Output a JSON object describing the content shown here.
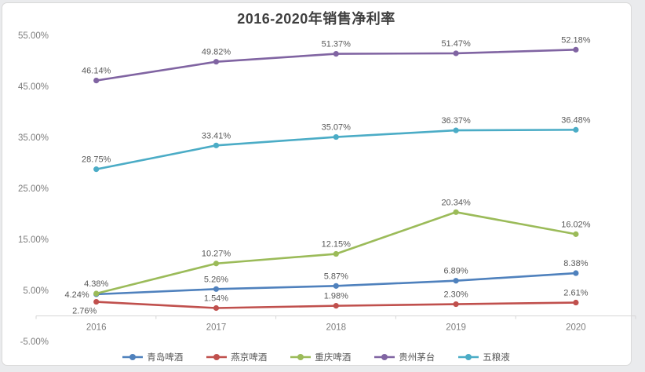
{
  "chart": {
    "title": "2016-2020年销售净利率"
  },
  "chart_data": {
    "type": "line",
    "title": "2016-2020年销售净利率",
    "categories": [
      "2016",
      "2017",
      "2018",
      "2019",
      "2020"
    ],
    "series": [
      {
        "name": "青岛啤酒",
        "color": "#4F81BD",
        "values": [
          4.24,
          5.26,
          5.87,
          6.89,
          8.38
        ],
        "labels": [
          "4.24%",
          "5.26%",
          "5.87%",
          "6.89%",
          "8.38%"
        ],
        "label_pos": [
          "left",
          "above",
          "above",
          "above",
          "above"
        ]
      },
      {
        "name": "燕京啤酒",
        "color": "#C0504D",
        "values": [
          2.76,
          1.54,
          1.98,
          2.3,
          2.61
        ],
        "labels": [
          "2.76%",
          "1.54%",
          "1.98%",
          "2.30%",
          "2.61%"
        ],
        "label_pos": [
          "below-left",
          "above",
          "above",
          "above",
          "above"
        ]
      },
      {
        "name": "重庆啤酒",
        "color": "#9BBB59",
        "values": [
          4.38,
          10.27,
          12.15,
          20.34,
          16.02
        ],
        "labels": [
          "4.38%",
          "10.27%",
          "12.15%",
          "20.34%",
          "16.02%"
        ],
        "label_pos": [
          "above",
          "above",
          "above",
          "above",
          "above"
        ]
      },
      {
        "name": "贵州茅台",
        "color": "#8064A2",
        "values": [
          46.14,
          49.82,
          51.37,
          51.47,
          52.18
        ],
        "labels": [
          "46.14%",
          "49.82%",
          "51.37%",
          "51.47%",
          "52.18%"
        ],
        "label_pos": [
          "above",
          "above",
          "above",
          "above",
          "above"
        ]
      },
      {
        "name": "五粮液",
        "color": "#4BACC6",
        "values": [
          28.75,
          33.41,
          35.07,
          36.37,
          36.48
        ],
        "labels": [
          "28.75%",
          "33.41%",
          "35.07%",
          "36.37%",
          "36.48%"
        ],
        "label_pos": [
          "above",
          "above",
          "above",
          "above",
          "above"
        ]
      }
    ],
    "y_axis": {
      "tick_labels": [
        "55.00%",
        "45.00%",
        "35.00%",
        "25.00%",
        "15.00%",
        "5.00%",
        "-5.00%"
      ],
      "tick_values": [
        55,
        45,
        35,
        25,
        15,
        5,
        -5
      ]
    },
    "ylim": [
      -5,
      55
    ],
    "grid": false,
    "legend_position": "bottom"
  }
}
